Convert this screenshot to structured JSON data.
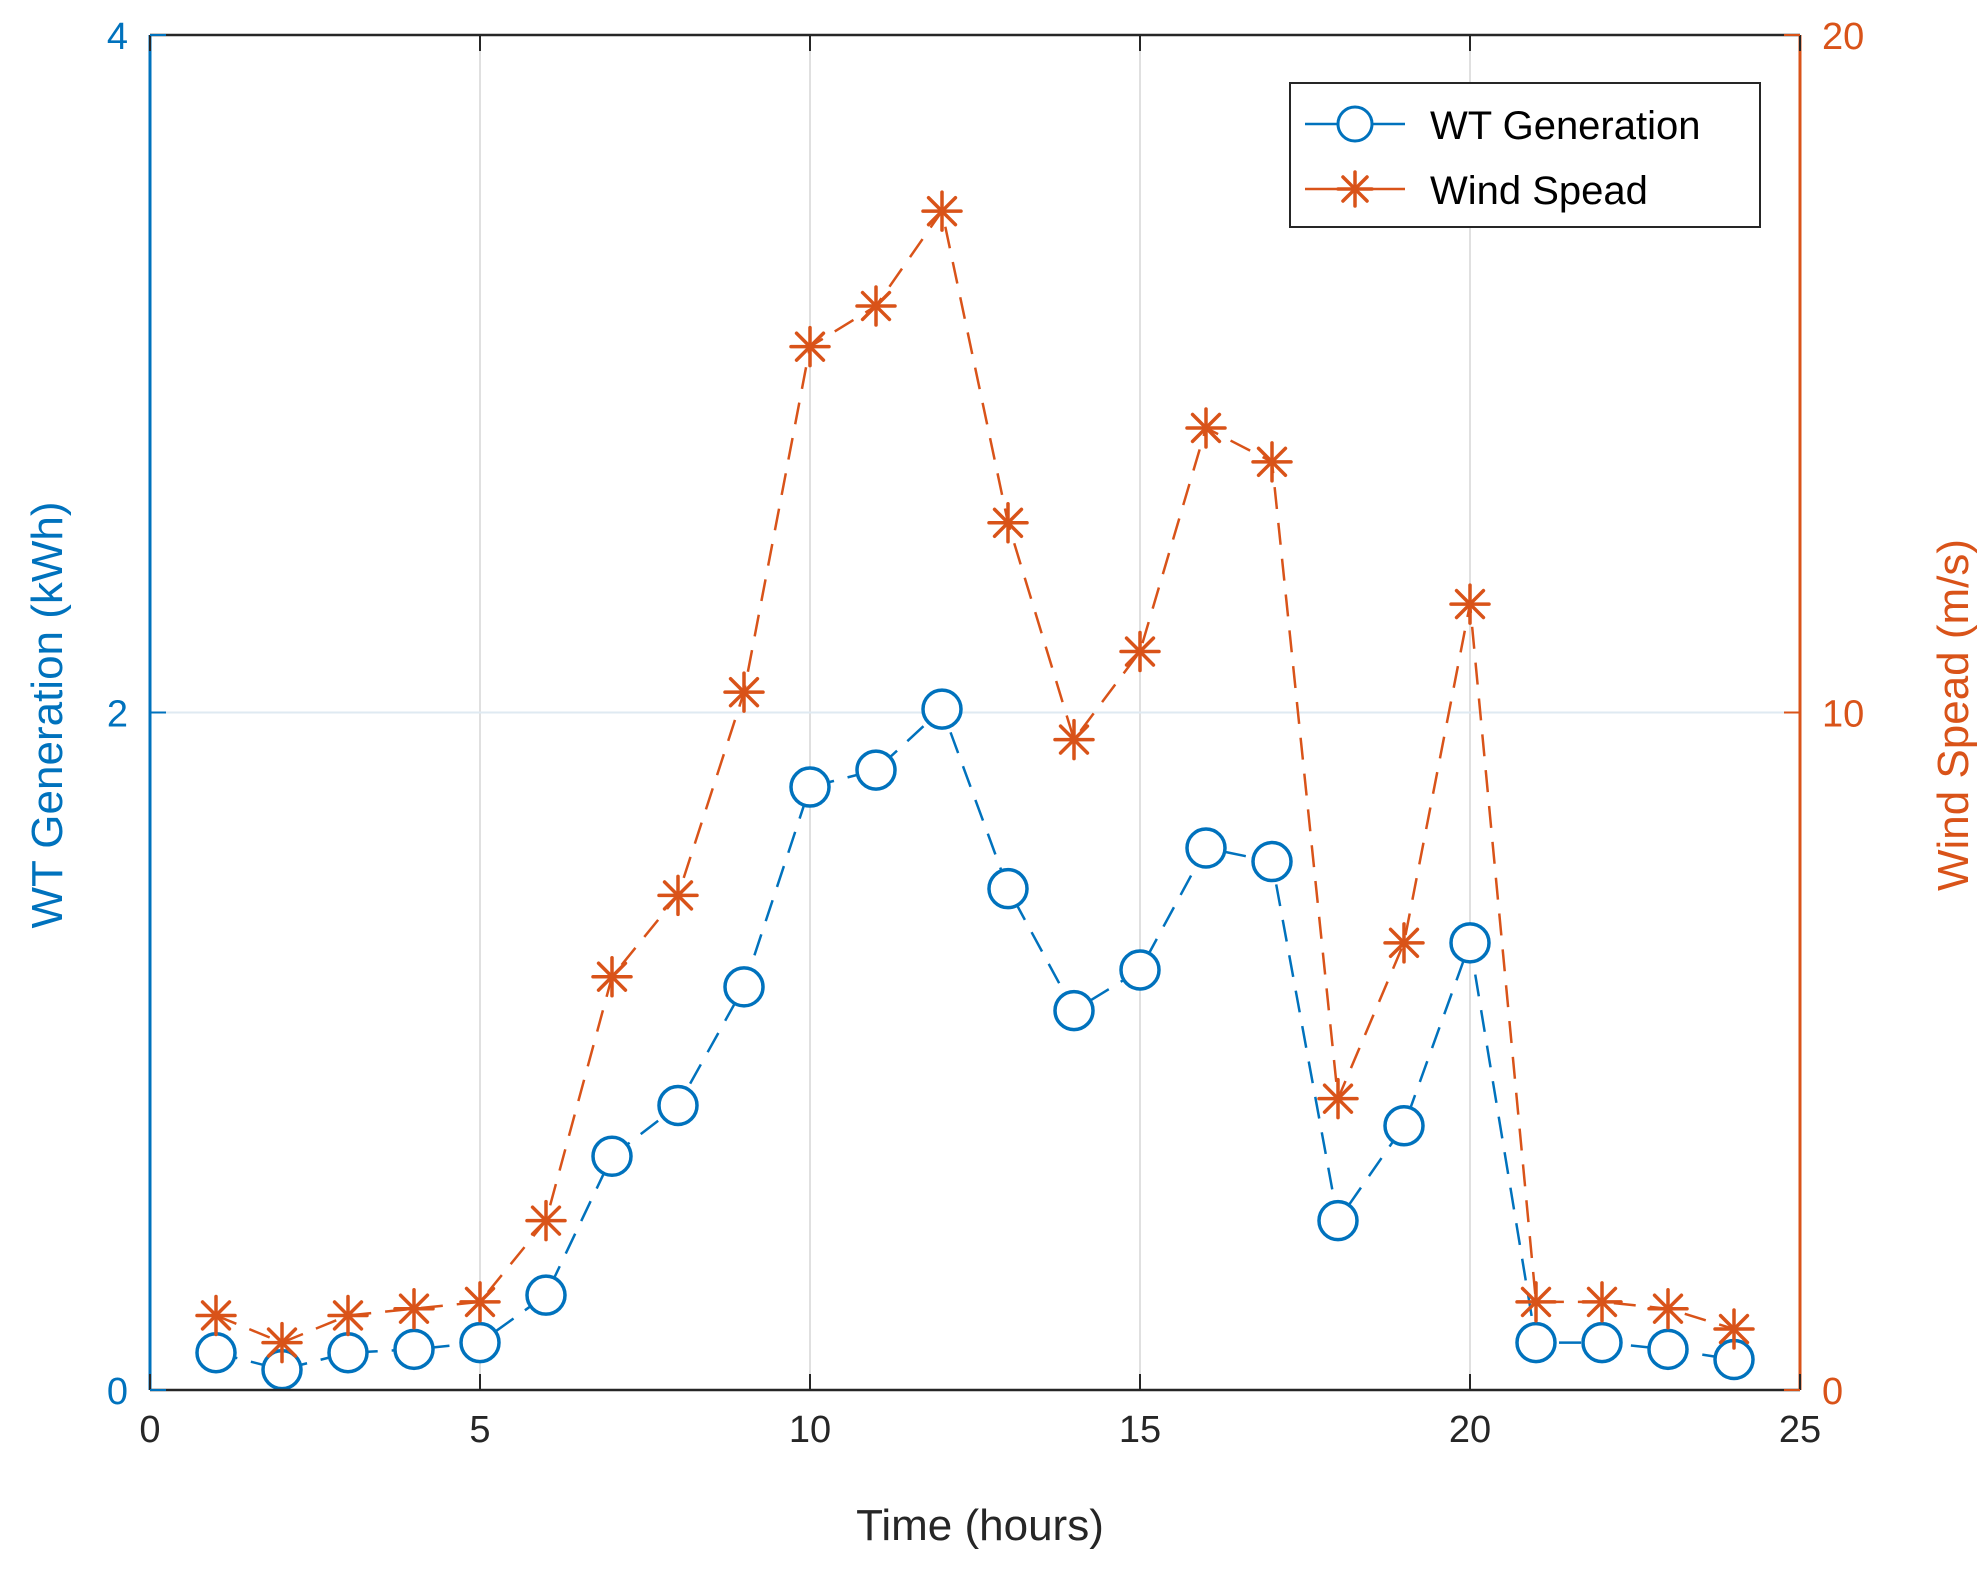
{
  "chart_data": {
    "type": "line",
    "title": "",
    "xlabel": "Time (hours)",
    "ylabel_left": "WT Generation (kWh)",
    "ylabel_right": "Wind Spead (m/s)",
    "xlim": [
      0,
      25
    ],
    "ylim_left": [
      0,
      4
    ],
    "ylim_right": [
      0,
      20
    ],
    "x_ticks": [
      "0",
      "5",
      "10",
      "15",
      "20",
      "25"
    ],
    "y_left_ticks": [
      "0",
      "2",
      "4"
    ],
    "y_right_ticks": [
      "0",
      "10",
      "20"
    ],
    "grid": true,
    "legend_position": "top-right",
    "x": [
      1,
      2,
      3,
      4,
      5,
      6,
      7,
      8,
      9,
      10,
      11,
      12,
      13,
      14,
      15,
      16,
      17,
      18,
      19,
      20,
      21,
      22,
      23,
      24
    ],
    "series": [
      {
        "name": "WT Generation",
        "axis": "left",
        "marker": "circle",
        "line_style": "dashed",
        "color": "#0072bd",
        "values": [
          0.11,
          0.06,
          0.11,
          0.12,
          0.14,
          0.28,
          0.69,
          0.84,
          1.19,
          1.78,
          1.83,
          2.01,
          1.48,
          1.12,
          1.24,
          1.6,
          1.56,
          0.5,
          0.78,
          1.32,
          0.14,
          0.14,
          0.12,
          0.09
        ]
      },
      {
        "name": "Wind Spead",
        "axis": "right",
        "marker": "star",
        "line_style": "dashed",
        "color": "#d95319",
        "values": [
          1.1,
          0.7,
          1.1,
          1.2,
          1.3,
          2.5,
          6.1,
          7.3,
          10.3,
          15.4,
          16.0,
          17.4,
          12.8,
          9.6,
          10.9,
          14.2,
          13.7,
          4.3,
          6.6,
          11.6,
          1.3,
          1.3,
          1.2,
          0.9
        ]
      }
    ]
  }
}
